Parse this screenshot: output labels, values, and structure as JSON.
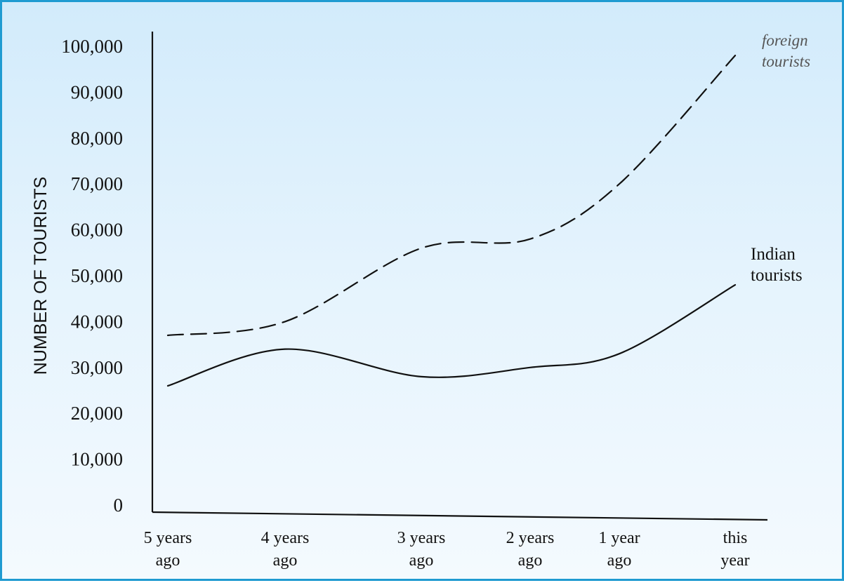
{
  "chart_data": {
    "type": "line",
    "title": "",
    "xlabel": "",
    "ylabel": "NUMBER OF TOURISTS",
    "ylim": [
      0,
      100000
    ],
    "grid": false,
    "categories": [
      [
        "5 years",
        "ago"
      ],
      [
        "4 years",
        "ago"
      ],
      [
        "3 years",
        "ago"
      ],
      [
        "2 years",
        "ago"
      ],
      [
        "1 year",
        "ago"
      ],
      [
        "this",
        "year"
      ]
    ],
    "y_ticks": [
      {
        "value": 0,
        "label": "0"
      },
      {
        "value": 10000,
        "label": "10,000"
      },
      {
        "value": 20000,
        "label": "20,000"
      },
      {
        "value": 30000,
        "label": "30,000"
      },
      {
        "value": 40000,
        "label": "40,000"
      },
      {
        "value": 50000,
        "label": "50,000"
      },
      {
        "value": 60000,
        "label": "60,000"
      },
      {
        "value": 70000,
        "label": "70,000"
      },
      {
        "value": 80000,
        "label": "80,000"
      },
      {
        "value": 90000,
        "label": "90,000"
      },
      {
        "value": 100000,
        "label": "100,000"
      }
    ],
    "series": [
      {
        "name": "foreign tourists",
        "label_lines": [
          "foreign",
          "tourists"
        ],
        "style": "dashed",
        "values": [
          37000,
          40000,
          56000,
          58000,
          70000,
          98000
        ]
      },
      {
        "name": "Indian tourists",
        "label_lines": [
          "Indian",
          "tourists"
        ],
        "style": "solid",
        "values": [
          26000,
          34000,
          28000,
          30000,
          33000,
          48000
        ]
      }
    ]
  }
}
